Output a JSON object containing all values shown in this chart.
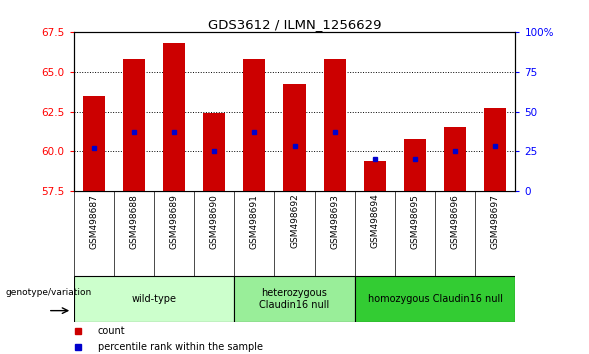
{
  "title": "GDS3612 / ILMN_1256629",
  "samples": [
    "GSM498687",
    "GSM498688",
    "GSM498689",
    "GSM498690",
    "GSM498691",
    "GSM498692",
    "GSM498693",
    "GSM498694",
    "GSM498695",
    "GSM498696",
    "GSM498697"
  ],
  "bar_tops": [
    63.5,
    65.8,
    66.8,
    62.4,
    65.8,
    64.2,
    65.8,
    59.4,
    60.8,
    61.5,
    62.7
  ],
  "blue_markers": [
    60.2,
    61.2,
    61.2,
    60.05,
    61.2,
    60.35,
    61.2,
    59.5,
    59.55,
    60.05,
    60.35
  ],
  "ylim_left": [
    57.5,
    67.5
  ],
  "ylim_right": [
    0,
    100
  ],
  "yticks_left": [
    57.5,
    60.0,
    62.5,
    65.0,
    67.5
  ],
  "yticks_right": [
    0,
    25,
    50,
    75,
    100
  ],
  "bar_color": "#cc0000",
  "blue_color": "#0000cc",
  "bar_bottom": 57.5,
  "group_data": [
    {
      "label": "wild-type",
      "start": 0,
      "end": 3,
      "color": "#ccffcc"
    },
    {
      "label": "heterozygous\nClaudin16 null",
      "start": 4,
      "end": 6,
      "color": "#99ee99"
    },
    {
      "label": "homozygous Claudin16 null",
      "start": 7,
      "end": 10,
      "color": "#33cc33"
    }
  ],
  "legend_items": [
    {
      "label": "count",
      "color": "#cc0000"
    },
    {
      "label": "percentile rank within the sample",
      "color": "#0000cc"
    }
  ],
  "genotype_label": "genotype/variation",
  "sample_bg": "#cccccc"
}
